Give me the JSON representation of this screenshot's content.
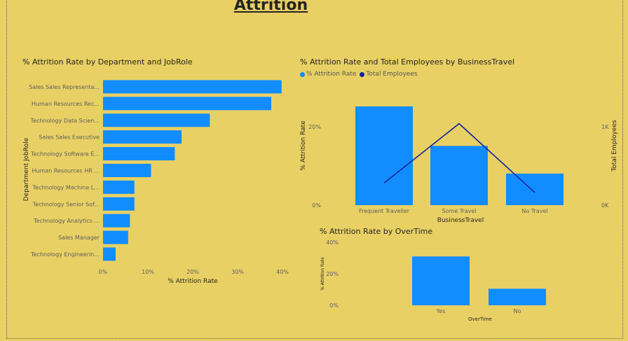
{
  "page": {
    "title": "Attrition"
  },
  "colors": {
    "background": "#e8d064",
    "bar": "#118dff",
    "line": "#12239e"
  },
  "chart_data": [
    {
      "type": "bar",
      "orientation": "horizontal",
      "title": "% Attrition Rate by Department and JobRole",
      "xlabel": "% Attrition Rate",
      "ylabel": "Department JobRole",
      "categories": [
        "Sales Sales Representa...",
        "Human Resources Rec...",
        "Technology Data Scien...",
        "Sales Sales Executive",
        "Technology Software E...",
        "Human Resources HR ...",
        "Technology Machine L...",
        "Technology Senior Sof...",
        "Technology Analytics ...",
        "Sales Manager",
        "Technology Engineerin..."
      ],
      "values": [
        39.8,
        37.5,
        23.8,
        17.5,
        16,
        10.7,
        7,
        7,
        6,
        5.6,
        2.8
      ],
      "xlim": [
        0,
        40
      ],
      "xticks": [
        "0%",
        "10%",
        "20%",
        "30%",
        "40%"
      ]
    },
    {
      "type": "bar+line",
      "title": "% Attrition Rate and Total Employees by BusinessTravel",
      "legend": [
        "% Attrition Rate",
        "Total Employees"
      ],
      "xlabel": "BusinessTravel",
      "ylabel": "% Attrition Rate",
      "y2label": "Total Employees",
      "categories": [
        "Frequent Traveller",
        "Some Travel",
        "No Travel"
      ],
      "series": [
        {
          "name": "% Attrition Rate",
          "type": "bar",
          "values": [
            25,
            15,
            8
          ]
        },
        {
          "name": "Total Employees",
          "type": "line",
          "values": [
            280,
            1030,
            160
          ]
        }
      ],
      "ylim": [
        0,
        25
      ],
      "y2lim": [
        0,
        1000
      ],
      "yticks": [
        "0%",
        "20%"
      ],
      "y2ticks": [
        "0K",
        "1K"
      ]
    },
    {
      "type": "bar",
      "title": "% Attrition Rate by OverTime",
      "xlabel": "OverTime",
      "ylabel": "% Attrition Rate",
      "categories": [
        "Yes",
        "No"
      ],
      "values": [
        31,
        10.5
      ],
      "ylim": [
        0,
        40
      ],
      "yticks": [
        "0%",
        "20%",
        "40%"
      ]
    }
  ]
}
